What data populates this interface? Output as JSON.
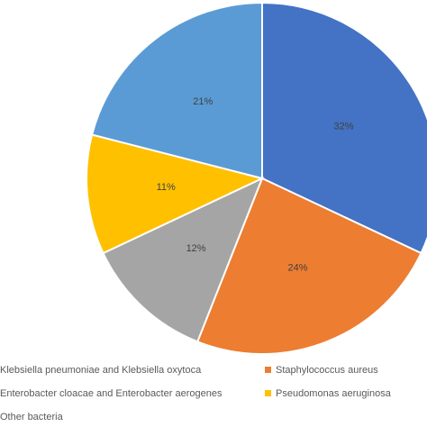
{
  "chart_data": {
    "type": "pie",
    "title": "",
    "slices": [
      {
        "label": "Klebsiella pneumoniae and Klebsiella oxytoca",
        "value": 32,
        "value_label": "32%",
        "color": "#4472C4"
      },
      {
        "label": "Staphylococcus aureus",
        "value": 24,
        "value_label": "24%",
        "color": "#ED7D31"
      },
      {
        "label": "Enterobacter cloacae and Enterobacter aerogenes",
        "value": 12,
        "value_label": "12%",
        "color": "#A5A5A5"
      },
      {
        "label": "Pseudomonas aeruginosa",
        "value": 11,
        "value_label": "11%",
        "color": "#FFC000"
      },
      {
        "label": "Other bacteria",
        "value": 21,
        "value_label": "21%",
        "color": "#5B9BD5"
      }
    ],
    "start": "12 o'clock",
    "direction": "clockwise",
    "legend_position": "bottom"
  }
}
